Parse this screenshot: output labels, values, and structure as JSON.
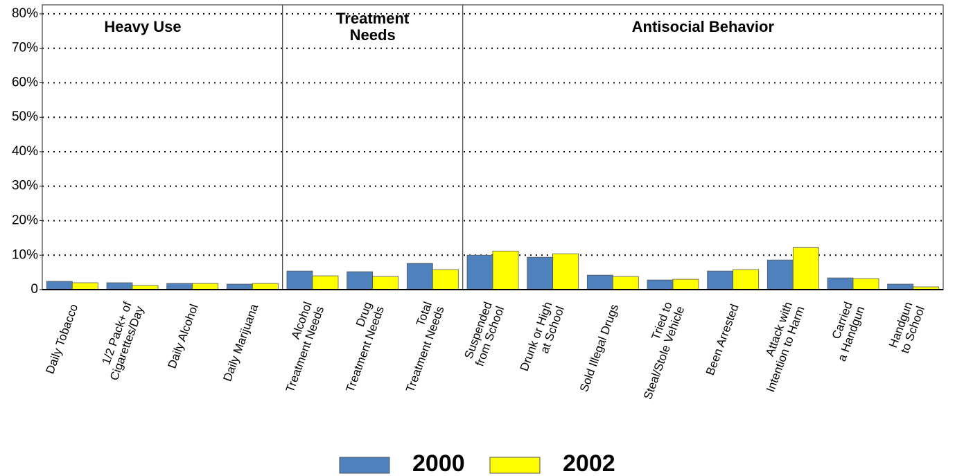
{
  "chart_data": {
    "type": "bar",
    "groups": [
      {
        "label": "Heavy Use",
        "categories": [
          "Daily Tobacco",
          "1/2 Pack+  of\nCigarettes/Day",
          "Daily Alcohol",
          "Daily Marijuana"
        ]
      },
      {
        "label": "Treatment\nNeeds",
        "categories": [
          "Alcohol\nTreatment Needs",
          "Drug\nTreatment Needs",
          "Total\nTreatment Needs"
        ]
      },
      {
        "label": "Antisocial Behavior",
        "categories": [
          "Suspended\nfrom School",
          "Drunk or High\nat School",
          "Sold Illegal Drugs",
          "Tried to\nSteal/Stole Vehicle",
          "Been Arrested",
          "Attack with\nIntention to Harm",
          "Carried\na Handgun",
          "Handgun\nto School"
        ]
      }
    ],
    "series": [
      {
        "name": "2000",
        "color": "#4f81bd",
        "values": [
          2.4,
          2.0,
          1.8,
          1.6,
          5.4,
          5.2,
          7.6,
          10.0,
          9.4,
          4.2,
          2.8,
          5.4,
          8.6,
          3.4,
          1.6
        ]
      },
      {
        "name": "2002",
        "color": "#ffff00",
        "values": [
          2.0,
          1.2,
          1.8,
          1.8,
          4.0,
          3.8,
          5.8,
          11.2,
          10.4,
          3.8,
          3.0,
          5.8,
          12.2,
          3.2,
          0.8
        ]
      }
    ],
    "ylim": [
      0,
      82.6
    ],
    "yticks": [
      0,
      {
        "value": 10,
        "label": "10%"
      },
      {
        "value": 20,
        "label": "20%"
      },
      {
        "value": 30,
        "label": "30%"
      },
      {
        "value": 40,
        "label": "40%"
      },
      {
        "value": 50,
        "label": "50%"
      },
      {
        "value": 60,
        "label": "60%"
      },
      {
        "value": 70,
        "label": "70%"
      },
      {
        "value": 80,
        "label": "80%"
      }
    ],
    "grid": true
  }
}
